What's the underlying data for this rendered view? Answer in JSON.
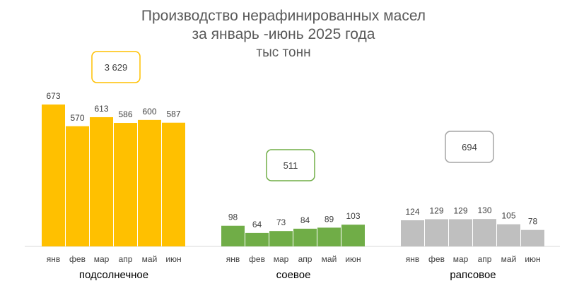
{
  "chart_data": {
    "type": "bar",
    "title_lines": [
      "Производство нерафинированных масел",
      "за январь -июнь 2025 года",
      "тыс тонн"
    ],
    "categories": [
      "янв",
      "фев",
      "мар",
      "апр",
      "май",
      "июн"
    ],
    "groups": [
      {
        "name": "подсолнечное",
        "total": "3 629",
        "values": [
          673,
          570,
          613,
          586,
          600,
          587
        ],
        "color": "#FFC000",
        "total_border": "#FFC000"
      },
      {
        "name": "соевое",
        "total": "511",
        "values": [
          98,
          64,
          73,
          84,
          89,
          103
        ],
        "color": "#70AD47",
        "total_border": "#70AD47"
      },
      {
        "name": "рапсовое",
        "total": "694",
        "values": [
          124,
          129,
          129,
          130,
          105,
          78
        ],
        "color": "#BFBFBF",
        "total_border": "#A6A6A6"
      }
    ],
    "ylim": [
      0,
      700
    ],
    "grid": false,
    "legend": "none"
  }
}
